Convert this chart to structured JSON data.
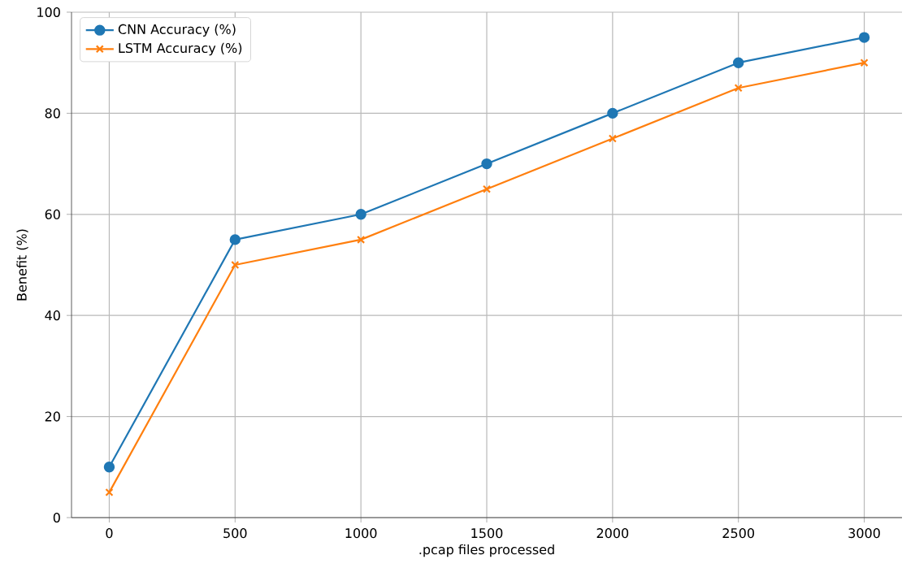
{
  "chart_data": {
    "type": "line",
    "xlabel": ".pcap files processed",
    "ylabel": "Benefit (%)",
    "x": [
      0,
      500,
      1000,
      1500,
      2000,
      2500,
      3000
    ],
    "series": [
      {
        "name": "CNN Accuracy (%)",
        "color": "#1f77b4",
        "marker": "circle",
        "values": [
          10,
          55,
          60,
          70,
          80,
          90,
          95
        ]
      },
      {
        "name": "LSTM Accuracy (%)",
        "color": "#ff7f0e",
        "marker": "cross",
        "values": [
          5,
          50,
          55,
          65,
          75,
          85,
          90
        ]
      }
    ],
    "xlim": [
      -150,
      3150
    ],
    "ylim": [
      0,
      100
    ],
    "xticks": [
      0,
      500,
      1000,
      1500,
      2000,
      2500,
      3000
    ],
    "yticks": [
      0,
      20,
      40,
      60,
      80,
      100
    ],
    "grid": true,
    "legend": "top left",
    "line_style": "solid"
  }
}
